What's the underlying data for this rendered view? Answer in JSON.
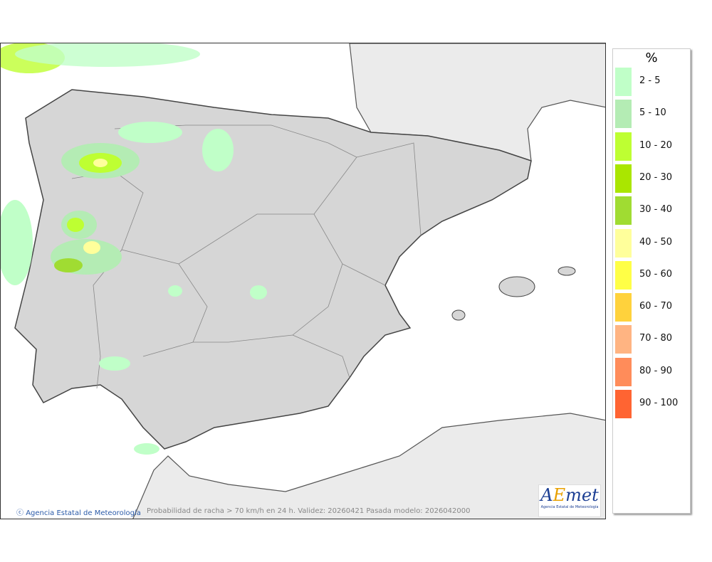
{
  "map": {
    "credit": "Agencia Estatal de Meteorología",
    "caption": "Probabilidad de racha > 70 km/h en 24 h. Validez: 20260421 Pasada modelo: 2026042000",
    "logo": {
      "text": "AEmet",
      "subtitle": "Agencia Estatal de Meteorología"
    },
    "colors": {
      "land": "#d9d9d9",
      "foreign_land": "#ebebeb",
      "sea": "#ffffff"
    }
  },
  "legend": {
    "title": "%",
    "items": [
      {
        "label": "2 - 5",
        "color": "#c0ffc8"
      },
      {
        "label": "5 - 10",
        "color": "#b4ecb4"
      },
      {
        "label": "10 - 20",
        "color": "#beff32"
      },
      {
        "label": "20 - 30",
        "color": "#aae600"
      },
      {
        "label": "30 - 40",
        "color": "#a0dc32"
      },
      {
        "label": "40 - 50",
        "color": "#ffff9b"
      },
      {
        "label": "50 - 60",
        "color": "#ffff46"
      },
      {
        "label": "60 - 70",
        "color": "#ffd23c"
      },
      {
        "label": "70 - 80",
        "color": "#ffb482"
      },
      {
        "label": "80 - 90",
        "color": "#ff8c5a"
      },
      {
        "label": "90 - 100",
        "color": "#ff6432"
      }
    ]
  }
}
